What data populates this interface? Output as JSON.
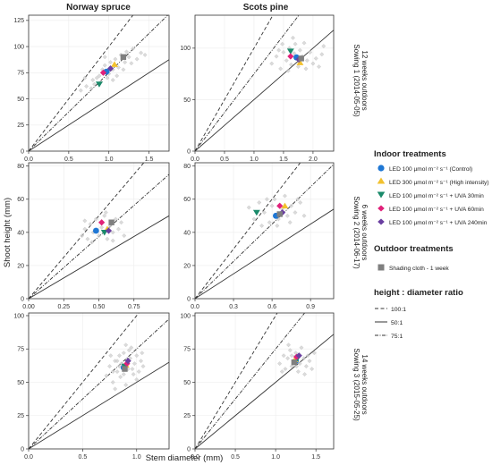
{
  "figure": {
    "ylabel": "Shoot height (mm)",
    "xlabel": "Stem diameter (mm)",
    "col_titles": [
      "Norway spruce",
      "Scots pine"
    ],
    "row_titles": [
      {
        "line1": "Sowing 1 (2014-05-05)",
        "line2": "12 weeks outdoors"
      },
      {
        "line1": "Sowing 2 (2014-06-17)",
        "line2": "6 weeks outdoors"
      },
      {
        "line1": "Sowing 3 (2015-05-25)",
        "line2": "14 weeks outdoors"
      }
    ]
  },
  "legend": {
    "indoor_title": "Indoor treatments",
    "indoor": [
      {
        "label": "LED 100 µmol m⁻² s⁻¹ (Control)",
        "color": "#1f77d4",
        "marker": "circle"
      },
      {
        "label": "LED 300 µmol m⁻² s⁻¹ (High intensity)",
        "color": "#f2c12e",
        "marker": "triangle-up"
      },
      {
        "label": "LED 100 µmol m⁻² s⁻¹ + UVA 30min",
        "color": "#1a8a6a",
        "marker": "triangle-down"
      },
      {
        "label": "LED 100 µmol m⁻² s⁻¹ + UVA 60min",
        "color": "#e0217a",
        "marker": "diamond"
      },
      {
        "label": "LED 100 µmol m⁻² s⁻¹ + UVA 240min",
        "color": "#6a3fa0",
        "marker": "diamond"
      }
    ],
    "outdoor_title": "Outdoor treatments",
    "outdoor": [
      {
        "label": "Shading cloth - 1 week",
        "color": "#7f7f7f",
        "marker": "square"
      }
    ],
    "ratio_title": "height : diameter ratio",
    "ratios": [
      {
        "label": "100:1",
        "dash": "dashed"
      },
      {
        "label": "50:1",
        "dash": "solid"
      },
      {
        "label": "75:1",
        "dash": "dotdash"
      }
    ]
  },
  "chart_data": [
    {
      "type": "scatter",
      "species": "Norway spruce",
      "sowing": "Sowing 1 (2014-05-05)",
      "xlim": [
        0,
        1.75
      ],
      "ylim": [
        0,
        130
      ],
      "xticks": [
        0.0,
        0.5,
        1.0,
        1.5
      ],
      "yticks": [
        0,
        25,
        50,
        75,
        100,
        125
      ],
      "xtick_labels": [
        "0.0",
        "0.5",
        "1.0",
        "1.5"
      ],
      "ytick_labels": [
        "0",
        "25",
        "50",
        "75",
        "100",
        "125"
      ],
      "ratio_lines": [
        100,
        50,
        75
      ],
      "means": [
        {
          "treatment": "Control",
          "x": 0.97,
          "y": 76
        },
        {
          "treatment": "High intensity",
          "x": 1.07,
          "y": 83
        },
        {
          "treatment": "UVA 30min",
          "x": 0.88,
          "y": 64
        },
        {
          "treatment": "UVA 60min",
          "x": 0.93,
          "y": 75
        },
        {
          "treatment": "UVA 240min",
          "x": 1.02,
          "y": 79
        },
        {
          "treatment": "Shading cloth - 1 week",
          "x": 1.18,
          "y": 90
        }
      ],
      "individuals": [
        [
          0.65,
          58
        ],
        [
          0.72,
          62
        ],
        [
          0.78,
          60
        ],
        [
          0.8,
          68
        ],
        [
          0.85,
          70
        ],
        [
          0.88,
          72
        ],
        [
          0.9,
          66
        ],
        [
          0.92,
          78
        ],
        [
          0.95,
          82
        ],
        [
          0.98,
          70
        ],
        [
          1.0,
          74
        ],
        [
          1.02,
          85
        ],
        [
          1.05,
          78
        ],
        [
          1.08,
          88
        ],
        [
          1.1,
          72
        ],
        [
          1.12,
          80
        ],
        [
          1.15,
          92
        ],
        [
          1.2,
          85
        ],
        [
          1.22,
          95
        ],
        [
          1.25,
          90
        ],
        [
          1.3,
          98
        ],
        [
          1.35,
          88
        ],
        [
          1.4,
          94
        ],
        [
          1.45,
          92
        ],
        [
          0.7,
          70
        ],
        [
          0.82,
          64
        ],
        [
          1.05,
          68
        ],
        [
          1.28,
          84
        ],
        [
          0.95,
          90
        ],
        [
          1.18,
          78
        ]
      ]
    },
    {
      "type": "scatter",
      "species": "Scots pine",
      "sowing": "Sowing 1 (2014-05-05)",
      "xlim": [
        0,
        2.35
      ],
      "ylim": [
        0,
        132
      ],
      "xticks": [
        0.0,
        0.5,
        1.0,
        1.5,
        2.0
      ],
      "yticks": [
        0,
        50,
        100
      ],
      "xtick_labels": [
        "0.0",
        "0.5",
        "1.0",
        "1.5",
        "2.0"
      ],
      "ytick_labels": [
        "0",
        "50",
        "100"
      ],
      "ratio_lines": [
        100,
        50,
        75
      ],
      "means": [
        {
          "treatment": "Control",
          "x": 1.72,
          "y": 91
        },
        {
          "treatment": "High intensity",
          "x": 1.78,
          "y": 86
        },
        {
          "treatment": "UVA 30min",
          "x": 1.62,
          "y": 97
        },
        {
          "treatment": "UVA 60min",
          "x": 1.62,
          "y": 92
        },
        {
          "treatment": "UVA 240min",
          "x": 1.76,
          "y": 89
        },
        {
          "treatment": "Shading cloth - 1 week",
          "x": 1.8,
          "y": 90
        }
      ],
      "individuals": [
        [
          1.3,
          85
        ],
        [
          1.38,
          92
        ],
        [
          1.45,
          80
        ],
        [
          1.5,
          96
        ],
        [
          1.55,
          88
        ],
        [
          1.6,
          100
        ],
        [
          1.63,
          84
        ],
        [
          1.68,
          95
        ],
        [
          1.7,
          104
        ],
        [
          1.75,
          82
        ],
        [
          1.78,
          98
        ],
        [
          1.82,
          92
        ],
        [
          1.85,
          105
        ],
        [
          1.9,
          88
        ],
        [
          1.95,
          96
        ],
        [
          2.0,
          85
        ],
        [
          2.05,
          90
        ],
        [
          2.1,
          82
        ],
        [
          2.15,
          94
        ],
        [
          1.48,
          104
        ],
        [
          1.58,
          78
        ],
        [
          1.88,
          80
        ],
        [
          2.18,
          102
        ],
        [
          1.42,
          98
        ],
        [
          1.66,
          110
        ]
      ]
    },
    {
      "type": "scatter",
      "species": "Norway spruce",
      "sowing": "Sowing 2 (2014-06-17)",
      "xlim": [
        0,
        1.0
      ],
      "ylim": [
        0,
        82
      ],
      "xticks": [
        0.0,
        0.25,
        0.5,
        0.75
      ],
      "yticks": [
        0,
        20,
        40,
        60,
        80
      ],
      "xtick_labels": [
        "0.00",
        "0.25",
        "0.50",
        "0.75"
      ],
      "ytick_labels": [
        "0",
        "20",
        "40",
        "60",
        "80"
      ],
      "ratio_lines": [
        100,
        50,
        75
      ],
      "means": [
        {
          "treatment": "Control",
          "x": 0.48,
          "y": 41
        },
        {
          "treatment": "High intensity",
          "x": 0.56,
          "y": 42
        },
        {
          "treatment": "UVA 30min",
          "x": 0.54,
          "y": 40
        },
        {
          "treatment": "UVA 60min",
          "x": 0.52,
          "y": 46
        },
        {
          "treatment": "UVA 240min",
          "x": 0.57,
          "y": 41
        },
        {
          "treatment": "Shading cloth - 1 week",
          "x": 0.59,
          "y": 46
        }
      ],
      "individuals": [
        [
          0.38,
          38
        ],
        [
          0.4,
          42
        ],
        [
          0.42,
          36
        ],
        [
          0.44,
          45
        ],
        [
          0.46,
          40
        ],
        [
          0.48,
          48
        ],
        [
          0.5,
          38
        ],
        [
          0.52,
          43
        ],
        [
          0.54,
          50
        ],
        [
          0.56,
          36
        ],
        [
          0.58,
          44
        ],
        [
          0.6,
          40
        ],
        [
          0.62,
          48
        ],
        [
          0.64,
          42
        ],
        [
          0.66,
          46
        ],
        [
          0.45,
          34
        ],
        [
          0.55,
          52
        ],
        [
          0.68,
          38
        ],
        [
          0.4,
          47
        ],
        [
          0.6,
          35
        ]
      ]
    },
    {
      "type": "scatter",
      "species": "Scots pine",
      "sowing": "Sowing 2 (2014-06-17)",
      "xlim": [
        0,
        1.08
      ],
      "ylim": [
        0,
        82
      ],
      "xticks": [
        0.0,
        0.3,
        0.6,
        0.9
      ],
      "yticks": [
        0,
        20,
        40,
        60,
        80
      ],
      "xtick_labels": [
        "0.0",
        "0.3",
        "0.6",
        "0.9"
      ],
      "ytick_labels": [
        "0",
        "20",
        "40",
        "60",
        "80"
      ],
      "ratio_lines": [
        100,
        50,
        75
      ],
      "means": [
        {
          "treatment": "Control",
          "x": 0.63,
          "y": 50
        },
        {
          "treatment": "High intensity",
          "x": 0.7,
          "y": 56
        },
        {
          "treatment": "UVA 30min",
          "x": 0.48,
          "y": 52
        },
        {
          "treatment": "UVA 60min",
          "x": 0.66,
          "y": 56
        },
        {
          "treatment": "UVA 240min",
          "x": 0.68,
          "y": 52
        },
        {
          "treatment": "Shading cloth - 1 week",
          "x": 0.66,
          "y": 51
        }
      ],
      "individuals": [
        [
          0.42,
          55
        ],
        [
          0.46,
          48
        ],
        [
          0.5,
          58
        ],
        [
          0.54,
          52
        ],
        [
          0.58,
          46
        ],
        [
          0.6,
          56
        ],
        [
          0.62,
          60
        ],
        [
          0.65,
          48
        ],
        [
          0.68,
          54
        ],
        [
          0.7,
          62
        ],
        [
          0.72,
          50
        ],
        [
          0.75,
          56
        ],
        [
          0.78,
          52
        ],
        [
          0.82,
          58
        ],
        [
          0.85,
          50
        ],
        [
          0.52,
          44
        ],
        [
          0.74,
          46
        ],
        [
          0.8,
          60
        ],
        [
          0.56,
          60
        ],
        [
          0.64,
          44
        ]
      ]
    },
    {
      "type": "scatter",
      "species": "Norway spruce",
      "sowing": "Sowing 3 (2015-05-25)",
      "xlim": [
        0,
        1.3
      ],
      "ylim": [
        0,
        102
      ],
      "xticks": [
        0.0,
        0.5,
        1.0
      ],
      "yticks": [
        0,
        25,
        50,
        75,
        100
      ],
      "xtick_labels": [
        "0.0",
        "0.5",
        "1.0"
      ],
      "ytick_labels": [
        "0",
        "25",
        "50",
        "75",
        "100"
      ],
      "ratio_lines": [
        100,
        50,
        75
      ],
      "means": [
        {
          "treatment": "Control",
          "x": 0.88,
          "y": 61
        },
        {
          "treatment": "High intensity",
          "x": 0.9,
          "y": 63
        },
        {
          "treatment": "UVA 30min",
          "x": 0.89,
          "y": 62
        },
        {
          "treatment": "UVA 60min",
          "x": 0.91,
          "y": 64
        },
        {
          "treatment": "UVA 240min",
          "x": 0.92,
          "y": 66
        },
        {
          "treatment": "Shading cloth - 1 week",
          "x": 0.89,
          "y": 60
        }
      ],
      "individuals": [
        [
          0.72,
          55
        ],
        [
          0.75,
          62
        ],
        [
          0.78,
          50
        ],
        [
          0.8,
          66
        ],
        [
          0.82,
          58
        ],
        [
          0.84,
          70
        ],
        [
          0.85,
          54
        ],
        [
          0.86,
          64
        ],
        [
          0.88,
          72
        ],
        [
          0.9,
          48
        ],
        [
          0.92,
          60
        ],
        [
          0.94,
          68
        ],
        [
          0.95,
          76
        ],
        [
          0.97,
          56
        ],
        [
          0.98,
          64
        ],
        [
          1.0,
          70
        ],
        [
          1.02,
          58
        ],
        [
          1.04,
          66
        ],
        [
          1.06,
          62
        ],
        [
          0.8,
          45
        ],
        [
          0.9,
          78
        ],
        [
          0.76,
          70
        ],
        [
          1.0,
          52
        ],
        [
          0.84,
          62
        ],
        [
          0.96,
          60
        ],
        [
          0.88,
          56
        ],
        [
          0.93,
          74
        ],
        [
          0.78,
          58
        ],
        [
          1.05,
          72
        ],
        [
          0.82,
          66
        ]
      ]
    },
    {
      "type": "scatter",
      "species": "Scots pine",
      "sowing": "Sowing 3 (2015-05-25)",
      "xlim": [
        0,
        1.72
      ],
      "ylim": [
        0,
        102
      ],
      "xticks": [
        0.0,
        0.5,
        1.0,
        1.5
      ],
      "yticks": [
        0,
        25,
        50,
        75,
        100
      ],
      "xtick_labels": [
        "0.0",
        "0.5",
        "1.0",
        "1.5"
      ],
      "ytick_labels": [
        "0",
        "25",
        "50",
        "75",
        "100"
      ],
      "ratio_lines": [
        100,
        50,
        75
      ],
      "means": [
        {
          "treatment": "Control",
          "x": 1.25,
          "y": 66
        },
        {
          "treatment": "High intensity",
          "x": 1.24,
          "y": 67
        },
        {
          "treatment": "UVA 30min",
          "x": 1.27,
          "y": 68
        },
        {
          "treatment": "UVA 60min",
          "x": 1.26,
          "y": 69
        },
        {
          "treatment": "UVA 240min",
          "x": 1.29,
          "y": 70
        },
        {
          "treatment": "Shading cloth - 1 week",
          "x": 1.23,
          "y": 65
        }
      ],
      "individuals": [
        [
          1.05,
          64
        ],
        [
          1.1,
          70
        ],
        [
          1.12,
          60
        ],
        [
          1.15,
          68
        ],
        [
          1.18,
          74
        ],
        [
          1.2,
          62
        ],
        [
          1.22,
          66
        ],
        [
          1.25,
          72
        ],
        [
          1.28,
          58
        ],
        [
          1.3,
          64
        ],
        [
          1.32,
          76
        ],
        [
          1.35,
          68
        ],
        [
          1.38,
          62
        ],
        [
          1.4,
          70
        ],
        [
          1.42,
          66
        ],
        [
          1.45,
          60
        ],
        [
          1.08,
          58
        ],
        [
          1.48,
          72
        ],
        [
          1.16,
          78
        ],
        [
          1.36,
          56
        ],
        [
          1.26,
          62
        ],
        [
          1.2,
          70
        ]
      ]
    }
  ]
}
